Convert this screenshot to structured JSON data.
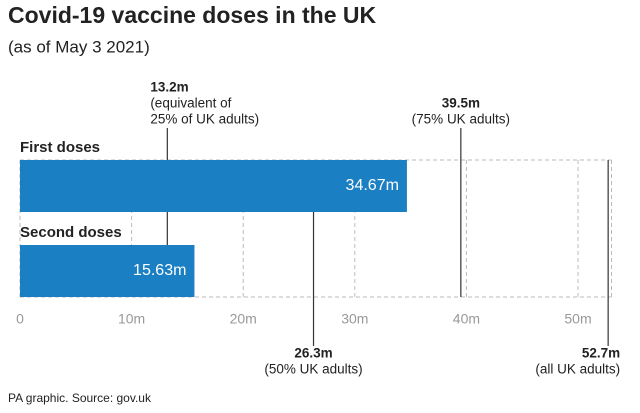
{
  "chart_data": {
    "type": "bar",
    "orientation": "horizontal",
    "title": "Covid-19 vaccine doses in the UK",
    "subtitle": "(as of May 3 2021)",
    "source": "PA graphic. Source: gov.uk",
    "categories": [
      "First doses",
      "Second doses"
    ],
    "values": [
      34.67,
      15.63
    ],
    "value_labels": [
      "34.67m",
      "15.63m"
    ],
    "color": "#1b7fc4",
    "xlim": [
      0,
      53
    ],
    "xticks": [
      0,
      {
        "value": 10,
        "label": "10m"
      },
      {
        "value": 20,
        "label": "20m"
      },
      {
        "value": 30,
        "label": "30m"
      },
      {
        "value": 40,
        "label": "40m"
      },
      {
        "value": 50,
        "label": "50m"
      }
    ],
    "grid": true,
    "reference_lines": [
      {
        "value": 13.2,
        "label": "13.2m",
        "note": [
          "(equivalent of",
          "25% of UK adults)"
        ]
      },
      {
        "value": 26.3,
        "label": "26.3m",
        "note": [
          "(50% UK adults)"
        ]
      },
      {
        "value": 39.5,
        "label": "39.5m",
        "note": [
          "(75% UK adults)"
        ]
      },
      {
        "value": 52.7,
        "label": "52.7m",
        "note": [
          "(all UK adults)"
        ]
      }
    ]
  }
}
